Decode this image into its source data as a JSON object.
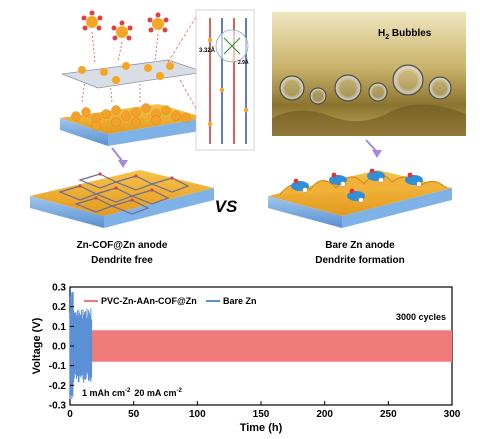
{
  "schematic": {
    "left_title": "Zn-COF@Zn anode",
    "left_subtitle": "Dendrite free",
    "right_title": "Bare Zn anode",
    "right_subtitle": "Dendrite formation",
    "versus": "VS",
    "h2_label": "H",
    "h2_sub": "2",
    "h2_rest": " Bubbles",
    "spacing_label": "3.32Å",
    "angle_label": "2.9Å"
  },
  "chart_data": {
    "type": "line",
    "xlabel": "Time (h)",
    "ylabel": "Voltage (V)",
    "xlim": [
      0,
      300
    ],
    "ylim": [
      -0.3,
      0.3
    ],
    "xticks": [
      "0",
      "50",
      "100",
      "150",
      "200",
      "250",
      "300"
    ],
    "yticks": [
      "0.3",
      "0.2",
      "0.1",
      "0.0",
      "-0.1",
      "-0.2",
      "-0.3"
    ],
    "annotation": "3000 cycles",
    "conditions": {
      "cap_a": "1 mAh cm",
      "cap_sup": "-2",
      "cur_a": "20 mA cm",
      "cur_sup": "-2"
    },
    "series": [
      {
        "name": "PVC-Zn-AAn-COF@Zn",
        "color": "#f07a7a",
        "x_range": [
          0,
          300
        ],
        "upper_v": 0.08,
        "lower_v": -0.08
      },
      {
        "name": "Bare Zn",
        "color": "#5b8fd6",
        "x_range": [
          0,
          17
        ],
        "upper_v_peak": 0.28,
        "lower_v_peak": -0.27
      }
    ]
  }
}
